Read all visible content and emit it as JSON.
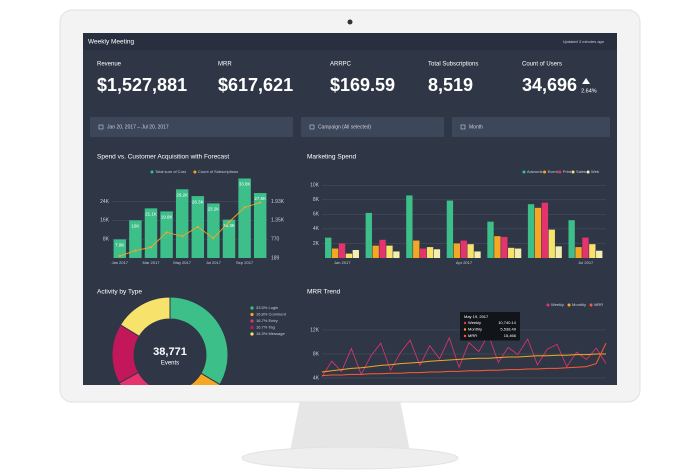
{
  "header": {
    "title": "Weekly Meeting",
    "updated": "Updated 3 minutes ago"
  },
  "kpis": [
    {
      "label": "Revenue",
      "value": "$1,527,881"
    },
    {
      "label": "MRR",
      "value": "$617,621"
    },
    {
      "label": "ARRPC",
      "value": "$169.59"
    },
    {
      "label": "Total Subscriptions",
      "value": "8,519"
    },
    {
      "label": "Count of Users",
      "value": "34,696",
      "change": "2.64%"
    }
  ],
  "filters": [
    "Jan 20, 2017 – Jul 20, 2017",
    "Campaign (All selected)",
    "Month"
  ],
  "charts": [
    {
      "type": "bar",
      "title": "Spend vs. Customer Acquisition with Forecast",
      "categories": [
        "Jan 2017",
        null,
        "Mar 2017",
        null,
        "May 2017",
        null,
        "Jul 2017",
        null,
        "Sep 2017",
        null
      ],
      "series": [
        {
          "name": "Total sum of Cost",
          "color": "#3dbf8a",
          "values": [
            7900,
            16000,
            21100,
            19800,
            29200,
            26300,
            23200,
            16300,
            33800,
            27600
          ],
          "value_labels": [
            "7.9K",
            "16K",
            "21.1K",
            "19.8K",
            "29.2K",
            "26.3K",
            "23.2K",
            "16.3K",
            "33.8K",
            "27.6K"
          ]
        },
        {
          "name": "Count of Subscriptions",
          "color": "#f5a623",
          "axis": "y2",
          "values": [
            250,
            420,
            520,
            980,
            860,
            1150,
            800,
            1300,
            1750,
            1900
          ]
        }
      ],
      "ylim": [
        0,
        34000
      ],
      "yticks": [
        {
          "value": 8000,
          "label": "8K"
        },
        {
          "value": 16000,
          "label": "16K"
        },
        {
          "value": 24000,
          "label": "24K"
        }
      ],
      "y2lim": [
        189,
        2658
      ],
      "y2ticks": [
        189,
        770,
        {
          "value": 1350,
          "label": "1.35K"
        },
        {
          "value": 1930,
          "label": "1.93K"
        }
      ],
      "grid": true
    },
    {
      "type": "grouped_bar",
      "title": "Marketing Spend",
      "categories": [
        "Jan 2017",
        null,
        null,
        "Apr 2017",
        null,
        null,
        "Jul 2017"
      ],
      "series": [
        {
          "name": "Adwords",
          "color": "#3dbf8a",
          "values": [
            2800,
            6200,
            8600,
            7900,
            5000,
            7400,
            5200
          ]
        },
        {
          "name": "Event",
          "color": "#f5a623",
          "values": [
            1300,
            1700,
            2400,
            2000,
            3000,
            6900,
            1500
          ]
        },
        {
          "name": "Print",
          "color": "#e5336d",
          "values": [
            2000,
            2500,
            1300,
            2400,
            2900,
            7600,
            2800
          ]
        },
        {
          "name": "Sales",
          "color": "#f7e26b",
          "values": [
            600,
            1700,
            1500,
            1900,
            1400,
            3900,
            1900
          ]
        },
        {
          "name": "Web",
          "color": "#f3efb0",
          "values": [
            1100,
            900,
            1200,
            900,
            1300,
            1600,
            1000
          ]
        }
      ],
      "ylim": [
        0,
        11000
      ],
      "yticks": [
        {
          "value": 2000,
          "label": "2K"
        },
        {
          "value": 4000,
          "label": "4K"
        },
        {
          "value": 6000,
          "label": "6K"
        },
        {
          "value": 8000,
          "label": "8K"
        },
        {
          "value": 10000,
          "label": "10K"
        }
      ],
      "grid": true
    },
    {
      "type": "donut",
      "title": "Activity by Type",
      "categories": [
        "Login",
        "Comment",
        "Entry",
        "Tag",
        "Message"
      ],
      "values": [
        33.5,
        16.8,
        16.7,
        16.7,
        16.3
      ],
      "value_labels": [
        "33.5%",
        "16.8%",
        "16.7%",
        "16.7%",
        "16.3%"
      ],
      "colors": [
        "#3dbf8a",
        "#f5a623",
        "#e5336d",
        "#c2185b",
        "#f7e26b"
      ],
      "center_value": "38,771",
      "center_label": "Events"
    },
    {
      "type": "line",
      "title": "MRR Trend",
      "series": [
        {
          "name": "Weekly",
          "color": "#e5336d",
          "values": [
            4200,
            6800,
            5100,
            8900,
            4600,
            7700,
            9800,
            5300,
            8200,
            10300,
            6100,
            9400,
            7200,
            10700,
            5800,
            9900,
            8400,
            11200,
            6600,
            9100,
            7900,
            10500,
            6200,
            8800,
            9600,
            5900,
            8300,
            7100,
            9000,
            6400
          ]
        },
        {
          "name": "Monthly",
          "color": "#f5a623",
          "values": [
            5000,
            5200,
            5400,
            5600,
            5700,
            5900,
            6100,
            6200,
            6400,
            6500,
            6600,
            6800,
            6900,
            7000,
            7100,
            7200,
            7300,
            7300,
            7400,
            7500,
            7500,
            7600,
            7700,
            7700,
            7800,
            7800,
            7900,
            7900,
            8000,
            8000
          ]
        },
        {
          "name": "MRR",
          "color": "#ff5a36",
          "values": [
            4400,
            4500,
            4500,
            4600,
            4600,
            4700,
            4700,
            4800,
            4800,
            4900,
            4900,
            5000,
            5000,
            5100,
            5100,
            5200,
            5200,
            5300,
            5300,
            5400,
            5400,
            5500,
            5500,
            5600,
            5600,
            5700,
            5800,
            5900,
            6400,
            9800
          ]
        }
      ],
      "ylim": [
        0,
        14000
      ],
      "yticks": [
        {
          "value": 4000,
          "label": "4K"
        },
        {
          "value": 8000,
          "label": "8K"
        },
        {
          "value": 12000,
          "label": "12K"
        }
      ],
      "grid": true,
      "tooltip": {
        "date": "May 19, 2017",
        "rows": [
          {
            "name": "Weekly",
            "value": "10,740.14"
          },
          {
            "name": "Monthly",
            "value": "5,538.49"
          },
          {
            "name": "MRR",
            "value": "15,466"
          }
        ]
      }
    }
  ]
}
